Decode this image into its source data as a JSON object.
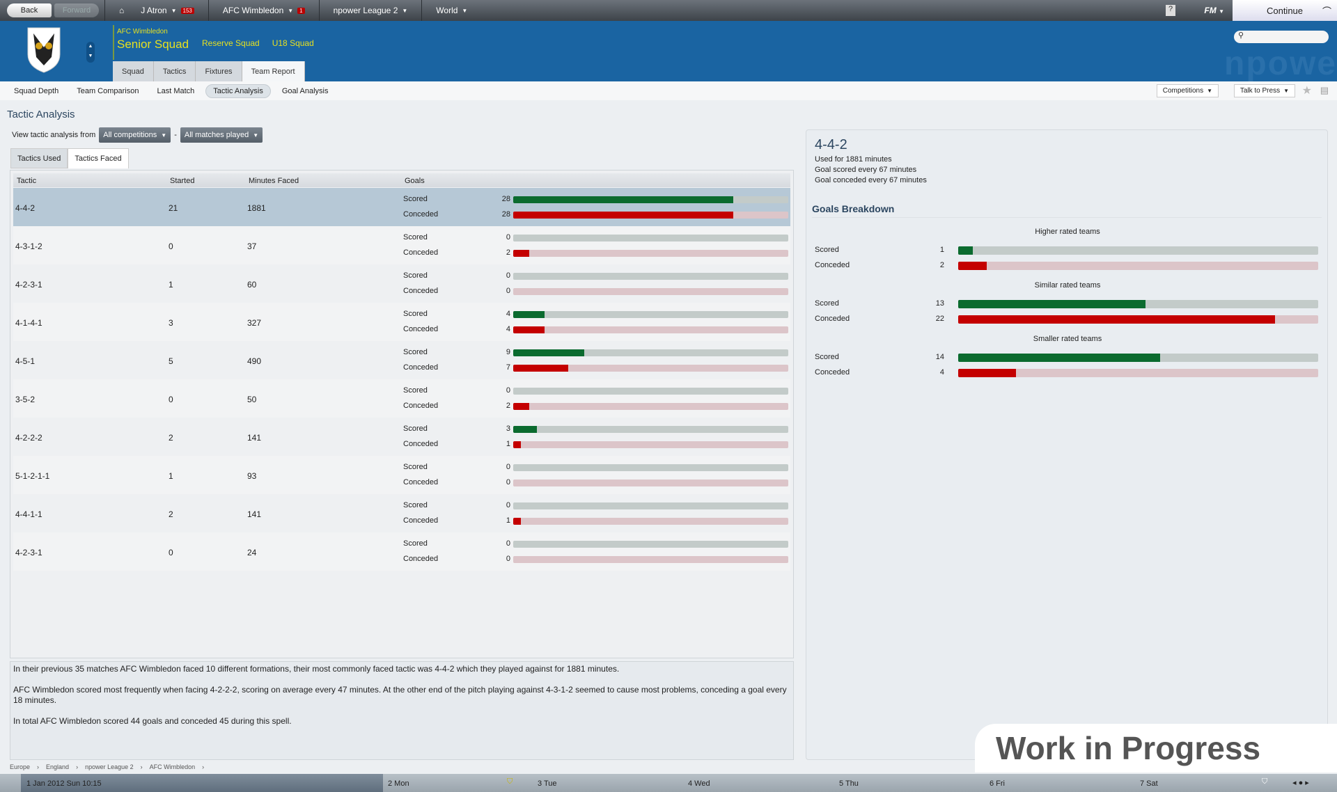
{
  "topbar": {
    "back": "Back",
    "forward": "Forward",
    "manager": "J Atron",
    "inbox_count": "153",
    "club": "AFC Wimbledon",
    "news_count": "1",
    "league": "npower League 2",
    "world": "World",
    "help": "?",
    "fm": "FM",
    "continue": "Continue"
  },
  "header": {
    "club": "AFC Wimbledon",
    "squad": "Senior Squad",
    "reserve": "Reserve Squad",
    "u18": "U18 Squad",
    "tabs": [
      "Squad",
      "Tactics",
      "Fixtures",
      "Team Report"
    ],
    "watermark": "npowe"
  },
  "subnav": {
    "items": [
      "Squad Depth",
      "Team Comparison",
      "Last Match",
      "Tactic Analysis",
      "Goal Analysis"
    ],
    "competitions": "Competitions",
    "press": "Talk to Press"
  },
  "page": {
    "title": "Tactic Analysis",
    "filter_label": "View tactic analysis from",
    "competition": "All competitions",
    "dash": "-",
    "matches": "All matches played",
    "tabs": [
      "Tactics Used",
      "Tactics Faced"
    ]
  },
  "table": {
    "headers": [
      "Tactic",
      "Started",
      "Minutes Faced",
      "Goals"
    ],
    "scored_label": "Scored",
    "conceded_label": "Conceded",
    "bar_max": 35,
    "rows": [
      {
        "tactic": "4-4-2",
        "started": "21",
        "minutes": "1881",
        "scored": 28,
        "conceded": 28
      },
      {
        "tactic": "4-3-1-2",
        "started": "0",
        "minutes": "37",
        "scored": 0,
        "conceded": 2
      },
      {
        "tactic": "4-2-3-1",
        "started": "1",
        "minutes": "60",
        "scored": 0,
        "conceded": 0
      },
      {
        "tactic": "4-1-4-1",
        "started": "3",
        "minutes": "327",
        "scored": 4,
        "conceded": 4
      },
      {
        "tactic": "4-5-1",
        "started": "5",
        "minutes": "490",
        "scored": 9,
        "conceded": 7
      },
      {
        "tactic": "3-5-2",
        "started": "0",
        "minutes": "50",
        "scored": 0,
        "conceded": 2
      },
      {
        "tactic": "4-2-2-2",
        "started": "2",
        "minutes": "141",
        "scored": 3,
        "conceded": 1
      },
      {
        "tactic": "5-1-2-1-1",
        "started": "1",
        "minutes": "93",
        "scored": 0,
        "conceded": 0
      },
      {
        "tactic": "4-4-1-1",
        "started": "2",
        "minutes": "141",
        "scored": 0,
        "conceded": 1
      },
      {
        "tactic": "4-2-3-1",
        "started": "0",
        "minutes": "24",
        "scored": 0,
        "conceded": 0
      }
    ]
  },
  "summary": [
    "In their previous 35 matches AFC Wimbledon faced 10 different formations, their most commonly faced tactic was 4-4-2 which they played against for 1881 minutes.",
    "AFC Wimbledon scored most frequently when facing 4-2-2-2, scoring on average every 47 minutes. At the other end of the pitch playing against 4-3-1-2 seemed to cause most problems, conceding a goal every 18 minutes.",
    "In total AFC Wimbledon scored 44 goals and conceded 45 during this spell."
  ],
  "detail": {
    "tactic": "4-4-2",
    "lines": [
      "Used for 1881 minutes",
      "Goal scored every 67 minutes",
      "Goal conceded every 67 minutes"
    ],
    "breakdown_title": "Goals Breakdown",
    "bar_max": 25,
    "groups": [
      {
        "label": "Higher rated teams",
        "scored": 1,
        "conceded": 2
      },
      {
        "label": "Similar rated teams",
        "scored": 13,
        "conceded": 22
      },
      {
        "label": "Smaller rated teams",
        "scored": 14,
        "conceded": 4
      }
    ]
  },
  "breadcrumb": [
    "Europe",
    "England",
    "npower League 2",
    "AFC Wimbledon"
  ],
  "calendar": {
    "today": "1 Jan 2012  Sun 10:15",
    "days": [
      "2 Mon",
      "3 Tue",
      "4 Wed",
      "5 Thu",
      "6 Fri",
      "7 Sat"
    ]
  },
  "overlay": "Work in Progress",
  "colors": {
    "scored": "#0b6b2f",
    "conceded": "#c40000",
    "header": "#1a64a2",
    "accent": "#e6e020"
  }
}
